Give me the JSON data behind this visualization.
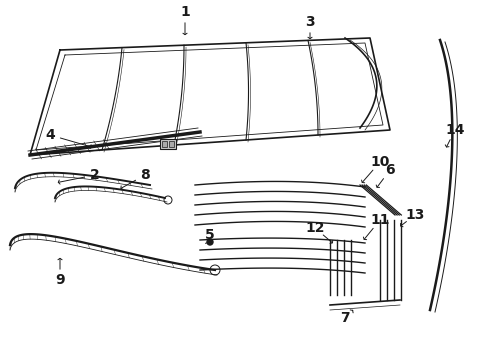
{
  "bg_color": "#ffffff",
  "line_color": "#1a1a1a",
  "figure_width": 4.9,
  "figure_height": 3.6,
  "dpi": 100,
  "label_fontsize": 10,
  "label_fontweight": "bold"
}
